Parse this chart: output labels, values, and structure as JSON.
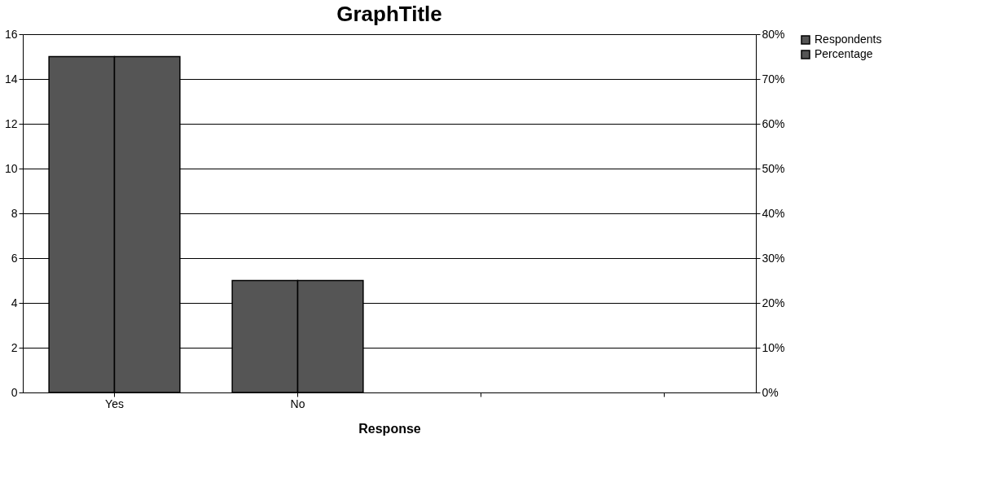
{
  "chart_data": {
    "type": "bar",
    "title": "GraphTitle",
    "xlabel": "Response",
    "categories": [
      "Yes",
      "No",
      null,
      null
    ],
    "series": [
      {
        "name": "Respondents",
        "color": "#555555",
        "values": [
          15,
          5,
          null,
          null
        ]
      },
      {
        "name": "Percentage",
        "color": "#555555",
        "values": [
          75,
          25,
          null,
          null
        ],
        "axis": "y2"
      }
    ],
    "ylim": [
      0,
      16
    ],
    "yticks": [
      0,
      2,
      4,
      6,
      8,
      10,
      12,
      14,
      16
    ],
    "y2lim": [
      0,
      80
    ],
    "y2ticks": [
      {
        "value": 0,
        "label": "0%"
      },
      {
        "value": 10,
        "label": "10%"
      },
      {
        "value": 20,
        "label": "20%"
      },
      {
        "value": 30,
        "label": "30%"
      },
      {
        "value": 40,
        "label": "40%"
      },
      {
        "value": 50,
        "label": "50%"
      },
      {
        "value": 60,
        "label": "60%"
      },
      {
        "value": 70,
        "label": "70%"
      },
      {
        "value": 80,
        "label": "80%"
      }
    ],
    "grid": "y",
    "legend": "right"
  }
}
